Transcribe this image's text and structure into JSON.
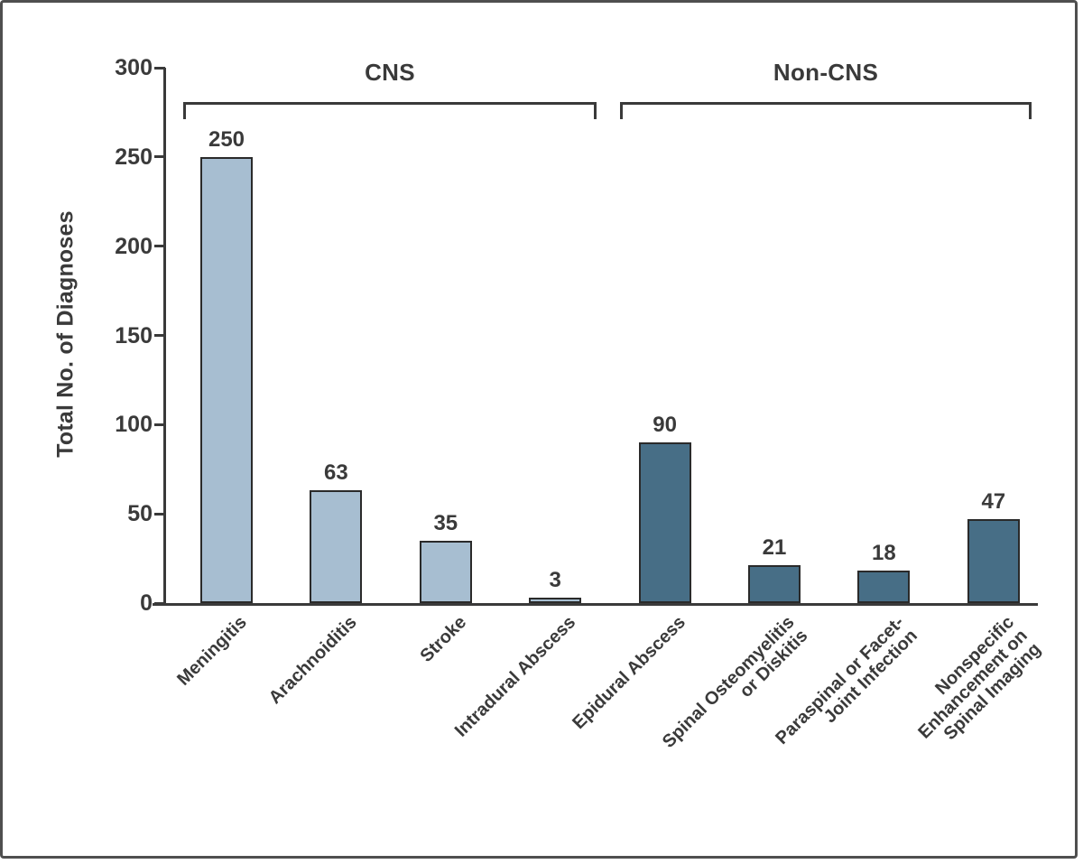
{
  "figure": {
    "frame_border_color": "#4f4f4f",
    "background": "#ffffff",
    "axis_color": "#3a3a3a",
    "text_color": "#3a3a3a",
    "bar_border_color": "#2a2a2a"
  },
  "chart_data": {
    "type": "bar",
    "title": "",
    "ylabel": "Total No. of Diagnoses",
    "xlabel": "",
    "ylim": [
      0,
      300
    ],
    "yticks": [
      0,
      50,
      100,
      150,
      200,
      250,
      300
    ],
    "grid": false,
    "value_labels_shown": true,
    "categories": [
      "Meningitis",
      "Arachnoiditis",
      "Stroke",
      "Intradural Abscess",
      "Epidural Abscess",
      "Spinal Osteomyelitis or Diskitis",
      "Paraspinal or Facet-Joint Infection",
      "Nonspecific Enhancement on Spinal Imaging"
    ],
    "values": [
      250,
      63,
      35,
      3,
      90,
      21,
      18,
      47
    ],
    "groups": [
      {
        "label": "CNS",
        "color": "#a7bed1",
        "bar_indexes": [
          0,
          1,
          2,
          3
        ]
      },
      {
        "label": "Non-CNS",
        "color": "#476e86",
        "bar_indexes": [
          4,
          5,
          6,
          7
        ]
      }
    ],
    "bars": [
      {
        "category": "Meningitis",
        "label_lines": [
          "Meningitis"
        ],
        "value": 250,
        "group": "CNS"
      },
      {
        "category": "Arachnoiditis",
        "label_lines": [
          "Arachnoiditis"
        ],
        "value": 63,
        "group": "CNS"
      },
      {
        "category": "Stroke",
        "label_lines": [
          "Stroke"
        ],
        "value": 35,
        "group": "CNS"
      },
      {
        "category": "Intradural Abscess",
        "label_lines": [
          "Intradural Abscess"
        ],
        "value": 3,
        "group": "CNS"
      },
      {
        "category": "Epidural Abscess",
        "label_lines": [
          "Epidural Abscess"
        ],
        "value": 90,
        "group": "Non-CNS"
      },
      {
        "category": "Spinal Osteomyelitis or Diskitis",
        "label_lines": [
          "Spinal Osteomyelitis",
          "or Diskitis"
        ],
        "value": 21,
        "group": "Non-CNS"
      },
      {
        "category": "Paraspinal or Facet-Joint Infection",
        "label_lines": [
          "Paraspinal or Facet-",
          "Joint Infection"
        ],
        "value": 18,
        "group": "Non-CNS"
      },
      {
        "category": "Nonspecific Enhancement on Spinal Imaging",
        "label_lines": [
          "Nonspecific",
          "Enhancement on",
          "Spinal Imaging"
        ],
        "value": 47,
        "group": "Non-CNS"
      }
    ]
  }
}
